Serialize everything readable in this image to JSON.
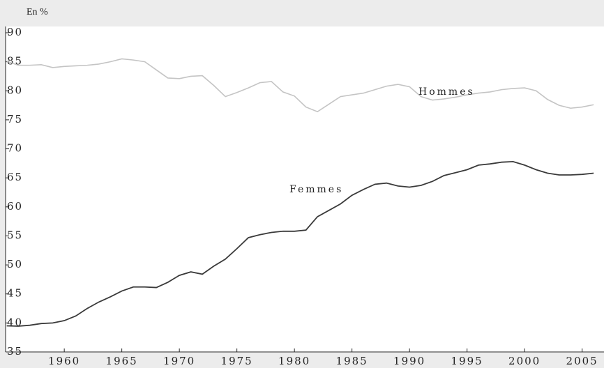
{
  "chart_data": {
    "type": "line",
    "y_unit_label": "En %",
    "x": [
      1955,
      1956,
      1957,
      1958,
      1959,
      1960,
      1961,
      1962,
      1963,
      1964,
      1965,
      1966,
      1967,
      1968,
      1969,
      1970,
      1971,
      1972,
      1973,
      1974,
      1975,
      1976,
      1977,
      1978,
      1979,
      1980,
      1981,
      1982,
      1983,
      1984,
      1985,
      1986,
      1987,
      1988,
      1989,
      1990,
      1991,
      1992,
      1993,
      1994,
      1995,
      1996,
      1997,
      1998,
      1999,
      2000,
      2001,
      2002,
      2003,
      2004,
      2005,
      2006
    ],
    "series": [
      {
        "name": "Hommes",
        "color": "#c4c4c4",
        "values": [
          85.1,
          84.4,
          84.4,
          84.5,
          84.0,
          84.2,
          84.3,
          84.4,
          84.6,
          85.0,
          85.5,
          85.3,
          85.0,
          83.6,
          82.2,
          82.1,
          82.5,
          82.6,
          80.9,
          79.0,
          79.7,
          80.5,
          81.4,
          81.6,
          79.8,
          79.1,
          77.2,
          76.4,
          77.7,
          79.0,
          79.3,
          79.6,
          80.2,
          80.8,
          81.1,
          80.7,
          79.0,
          78.4,
          78.6,
          78.9,
          79.3,
          79.6,
          79.8,
          80.2,
          80.4,
          80.5,
          80.0,
          78.5,
          77.5,
          77.0,
          77.2,
          77.6
        ]
      },
      {
        "name": "Femmes",
        "color": "#3a3a3a",
        "values": [
          39.5,
          39.45,
          39.6,
          39.9,
          40.0,
          40.4,
          41.2,
          42.5,
          43.6,
          44.5,
          45.5,
          46.2,
          46.2,
          46.1,
          47.0,
          48.2,
          48.8,
          48.4,
          49.8,
          51.0,
          52.8,
          54.7,
          55.2,
          55.6,
          55.8,
          55.8,
          56.0,
          58.3,
          59.4,
          60.5,
          62.0,
          63.0,
          63.9,
          64.1,
          63.6,
          63.4,
          63.7,
          64.4,
          65.4,
          65.9,
          66.4,
          67.2,
          67.4,
          67.7,
          67.8,
          67.2,
          66.4,
          65.8,
          65.5,
          65.5,
          65.6,
          65.8
        ]
      }
    ],
    "xlim": [
      1954.9,
      2006.9
    ],
    "xticks": [
      1960,
      1965,
      1970,
      1975,
      1980,
      1985,
      1990,
      1995,
      2000,
      2005
    ],
    "ylim": [
      35,
      90
    ],
    "yticks": [
      35,
      40,
      45,
      50,
      55,
      60,
      65,
      70,
      75,
      80,
      85,
      90
    ],
    "grid": false
  }
}
